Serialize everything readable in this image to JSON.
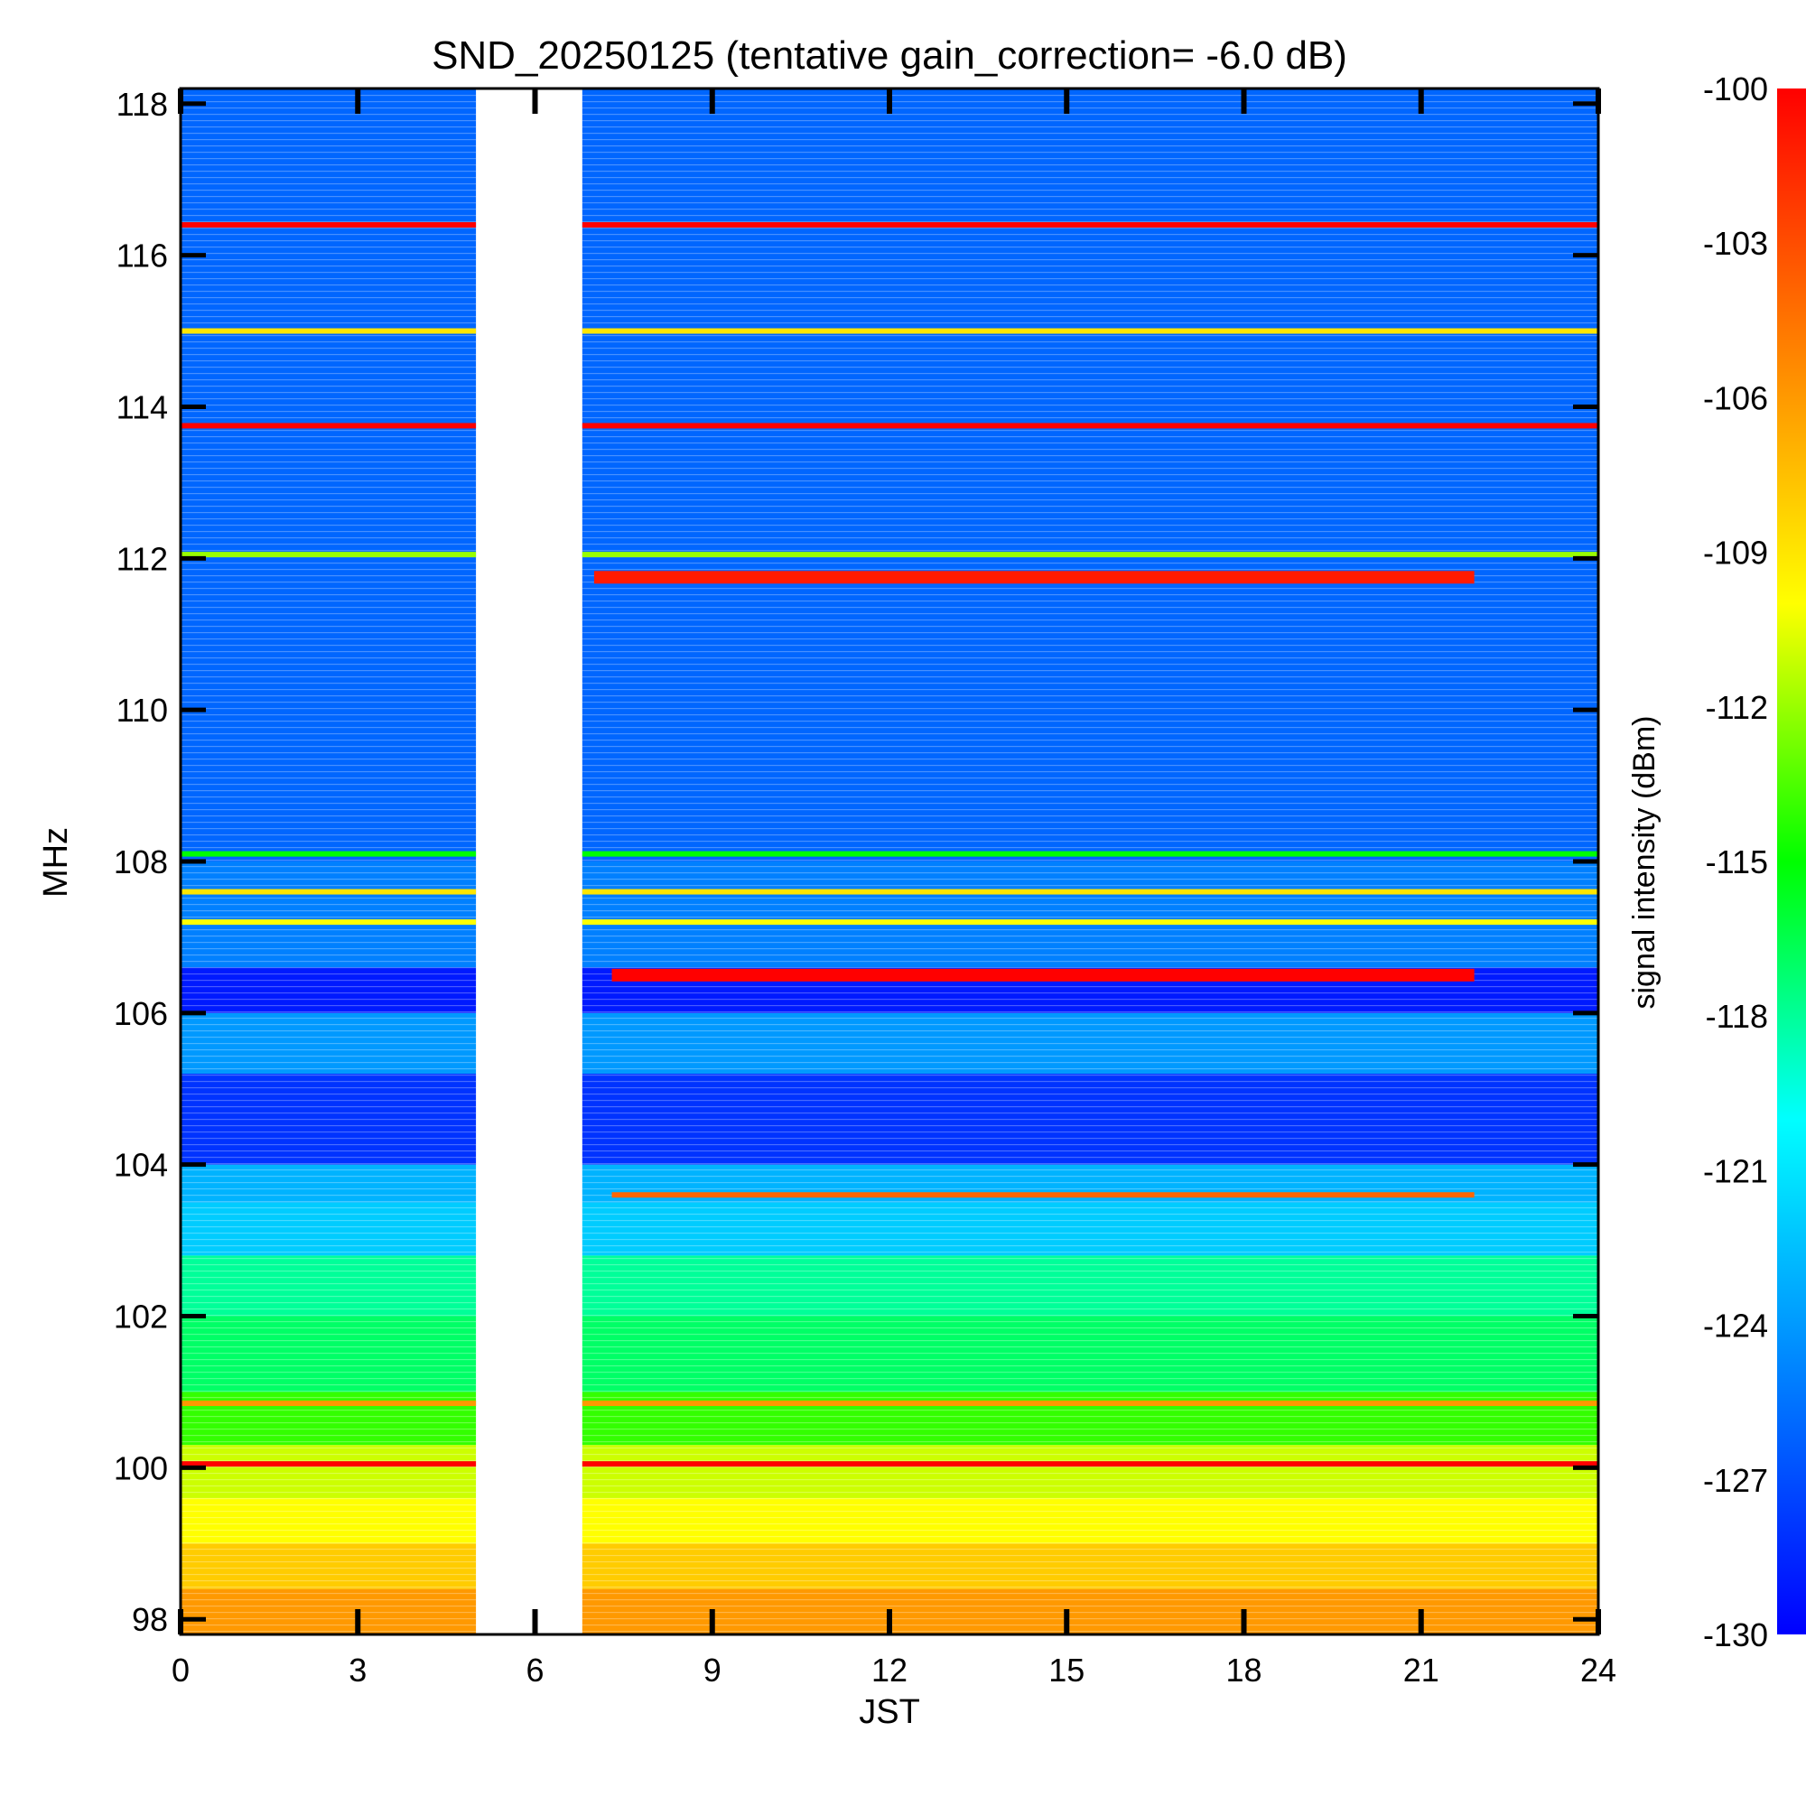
{
  "chart_data": {
    "type": "heatmap",
    "title": "SND_20250125 (tentative gain_correction= -6.0 dB)",
    "xlabel": "JST",
    "ylabel": "MHz",
    "colorbar_label": "signal intensity (dBm)",
    "xlim": [
      0,
      24
    ],
    "ylim": [
      97.8,
      118.2
    ],
    "x_ticks": [
      "0",
      "3",
      "6",
      "9",
      "12",
      "15",
      "18",
      "21",
      "24"
    ],
    "y_ticks": [
      "98",
      "100",
      "102",
      "104",
      "106",
      "108",
      "110",
      "112",
      "114",
      "116",
      "118"
    ],
    "colorbar_range": [
      -130,
      -100
    ],
    "colorbar_ticks": [
      "-100",
      "-103",
      "-106",
      "-109",
      "-112",
      "-115",
      "-118",
      "-121",
      "-124",
      "-127",
      "-130"
    ],
    "colormap": [
      "#0000ff",
      "#0080ff",
      "#00ffff",
      "#00ff00",
      "#ffff00",
      "#ff8000",
      "#ff0000"
    ],
    "data_gap_jst": [
      5.0,
      6.8
    ],
    "background_intensity_by_band": [
      {
        "mhz": [
          97.8,
          98.4
        ],
        "dbm": -106
      },
      {
        "mhz": [
          98.4,
          99.0
        ],
        "dbm": -108
      },
      {
        "mhz": [
          99.0,
          99.6
        ],
        "dbm": -110
      },
      {
        "mhz": [
          99.6,
          100.3
        ],
        "dbm": -111
      },
      {
        "mhz": [
          100.3,
          101.0
        ],
        "dbm": -114
      },
      {
        "mhz": [
          101.0,
          102.0
        ],
        "dbm": -117
      },
      {
        "mhz": [
          102.0,
          102.8
        ],
        "dbm": -118
      },
      {
        "mhz": [
          102.8,
          103.5
        ],
        "dbm": -122
      },
      {
        "mhz": [
          103.5,
          104.0
        ],
        "dbm": -123
      },
      {
        "mhz": [
          104.0,
          105.2
        ],
        "dbm": -128
      },
      {
        "mhz": [
          105.2,
          106.0
        ],
        "dbm": -124
      },
      {
        "mhz": [
          106.0,
          106.6
        ],
        "dbm": -129
      },
      {
        "mhz": [
          106.6,
          108.0
        ],
        "dbm": -125
      },
      {
        "mhz": [
          108.0,
          118.2
        ],
        "dbm": -126
      }
    ],
    "signals": [
      {
        "mhz": 116.4,
        "dbm": -100,
        "jst": [
          0,
          24
        ]
      },
      {
        "mhz": 115.0,
        "dbm": -109,
        "jst": [
          0,
          24
        ]
      },
      {
        "mhz": 113.75,
        "dbm": -100,
        "jst": [
          0,
          24
        ]
      },
      {
        "mhz": 112.05,
        "dbm": -112,
        "jst": [
          0,
          24
        ]
      },
      {
        "mhz": 111.75,
        "dbm": -101,
        "jst": [
          7,
          21.9
        ]
      },
      {
        "mhz": 108.1,
        "dbm": -115,
        "jst": [
          0,
          24
        ]
      },
      {
        "mhz": 107.6,
        "dbm": -109,
        "jst": [
          0,
          24
        ]
      },
      {
        "mhz": 107.2,
        "dbm": -110,
        "jst": [
          0,
          24
        ]
      },
      {
        "mhz": 106.5,
        "dbm": -100,
        "jst": [
          7.3,
          21.9
        ]
      },
      {
        "mhz": 103.6,
        "dbm": -104,
        "jst": [
          7.3,
          21.9
        ]
      },
      {
        "mhz": 100.85,
        "dbm": -106,
        "jst": [
          0,
          24
        ]
      },
      {
        "mhz": 100.05,
        "dbm": -100,
        "jst": [
          0,
          24
        ]
      }
    ]
  }
}
